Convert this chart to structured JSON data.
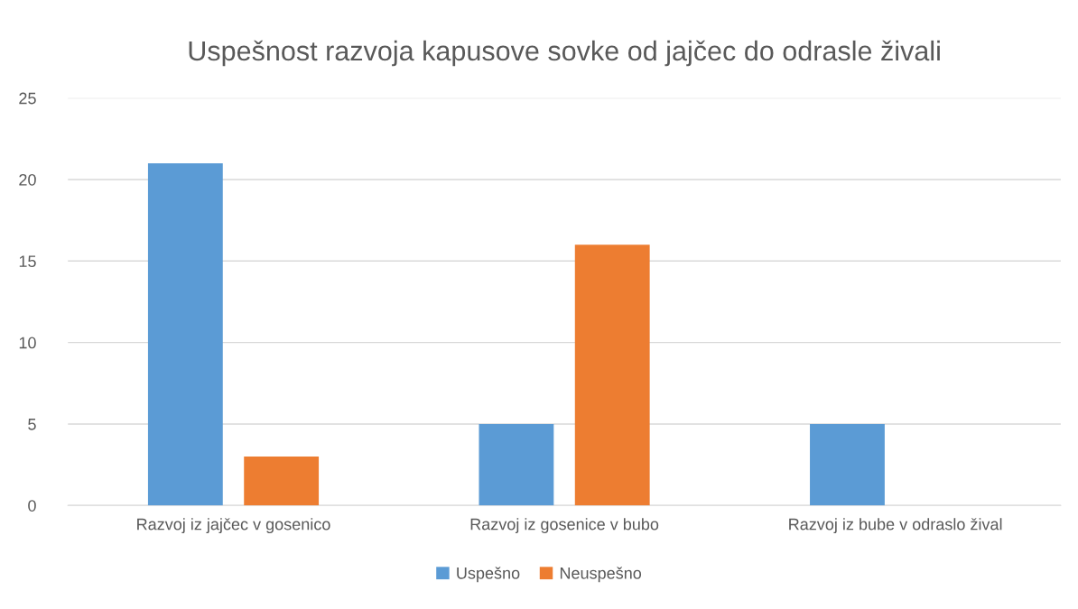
{
  "chart_data": {
    "type": "bar",
    "title": "Uspešnost razvoja kapusove sovke od jajčec do odrasle živali",
    "categories": [
      "Razvoj iz jajčec v gosenico",
      "Razvoj iz gosenice v bubo",
      "Razvoj iz bube v odraslo žival"
    ],
    "series": [
      {
        "name": "Uspešno",
        "color": "#5b9bd5",
        "values": [
          21,
          5,
          5
        ]
      },
      {
        "name": "Neuspešno",
        "color": "#ed7d31",
        "values": [
          3,
          16,
          0
        ]
      }
    ],
    "ylim": [
      0,
      25
    ],
    "yticks": [
      0,
      5,
      10,
      15,
      20,
      25
    ],
    "grid": "y",
    "legend": "bottom"
  }
}
